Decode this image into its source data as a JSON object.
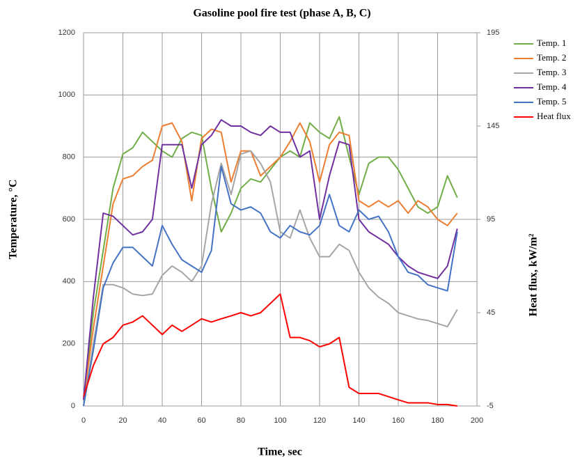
{
  "chart_data": {
    "type": "line",
    "title": "Gasoline pool fire test (phase A, B, C)",
    "x_label": "Time, sec",
    "y_label": "Temperature, °C",
    "y2_label": "Heat flux, kW/m²",
    "x": [
      0,
      5,
      10,
      15,
      20,
      25,
      30,
      35,
      40,
      45,
      50,
      55,
      60,
      65,
      70,
      75,
      80,
      85,
      90,
      95,
      100,
      105,
      110,
      115,
      120,
      125,
      130,
      135,
      140,
      145,
      150,
      155,
      160,
      165,
      170,
      175,
      180,
      185,
      190
    ],
    "xlim": [
      0,
      200
    ],
    "xticks": [
      0,
      20,
      40,
      60,
      80,
      100,
      120,
      140,
      160,
      180,
      200
    ],
    "ylim": [
      0,
      1200
    ],
    "yticks": [
      0,
      200,
      400,
      600,
      800,
      1000,
      1200
    ],
    "y2lim": [
      -5,
      195
    ],
    "y2ticks": [
      -5,
      45,
      95,
      145,
      195
    ],
    "grid": true,
    "legend": "right",
    "series": [
      {
        "name": "Temp. 1",
        "color": "#70ad47",
        "values": [
          20,
          300,
          500,
          700,
          810,
          830,
          880,
          850,
          820,
          800,
          860,
          880,
          870,
          700,
          560,
          620,
          700,
          730,
          720,
          760,
          800,
          820,
          800,
          910,
          880,
          860,
          930,
          800,
          680,
          780,
          800,
          800,
          760,
          700,
          640,
          620,
          640,
          740,
          670
        ]
      },
      {
        "name": "Temp. 2",
        "color": "#ed7d31",
        "values": [
          20,
          250,
          450,
          650,
          730,
          740,
          770,
          790,
          900,
          910,
          850,
          660,
          860,
          890,
          880,
          720,
          820,
          820,
          740,
          770,
          800,
          850,
          910,
          850,
          720,
          840,
          880,
          870,
          660,
          640,
          660,
          640,
          660,
          620,
          660,
          640,
          600,
          580,
          620
        ]
      },
      {
        "name": "Temp. 3",
        "color": "#a5a5a5",
        "values": [
          0,
          200,
          390,
          390,
          380,
          360,
          355,
          360,
          420,
          450,
          430,
          400,
          450,
          650,
          780,
          680,
          810,
          820,
          780,
          720,
          560,
          540,
          630,
          540,
          480,
          480,
          520,
          500,
          430,
          380,
          350,
          330,
          300,
          290,
          280,
          275,
          265,
          255,
          310
        ]
      },
      {
        "name": "Temp. 4",
        "color": "#7030a0",
        "values": [
          20,
          350,
          620,
          610,
          580,
          550,
          560,
          600,
          840,
          840,
          840,
          700,
          840,
          870,
          920,
          900,
          900,
          880,
          870,
          900,
          880,
          880,
          800,
          820,
          600,
          740,
          850,
          840,
          600,
          560,
          540,
          520,
          480,
          450,
          430,
          420,
          410,
          450,
          570
        ]
      },
      {
        "name": "Temp. 5",
        "color": "#4472c4",
        "values": [
          0,
          180,
          380,
          460,
          510,
          510,
          480,
          450,
          580,
          520,
          470,
          450,
          430,
          500,
          770,
          650,
          630,
          640,
          620,
          560,
          540,
          580,
          560,
          550,
          580,
          680,
          580,
          560,
          630,
          600,
          610,
          560,
          480,
          430,
          420,
          390,
          380,
          370,
          560
        ]
      },
      {
        "name": "Heat flux",
        "color": "#ff0000",
        "axis": "y2",
        "values": [
          0,
          16.7,
          28.3,
          31.7,
          38.3,
          40,
          43.3,
          38.3,
          33.3,
          38.3,
          35,
          38.3,
          41.7,
          40,
          41.7,
          43.3,
          45,
          43.3,
          45,
          50,
          55,
          31.7,
          31.7,
          30,
          26.7,
          28.3,
          31.7,
          5,
          1.7,
          1.7,
          1.7,
          0,
          -1.7,
          -3.3,
          -3.3,
          -3.3,
          -4.2,
          -4.2,
          -5
        ]
      }
    ]
  }
}
